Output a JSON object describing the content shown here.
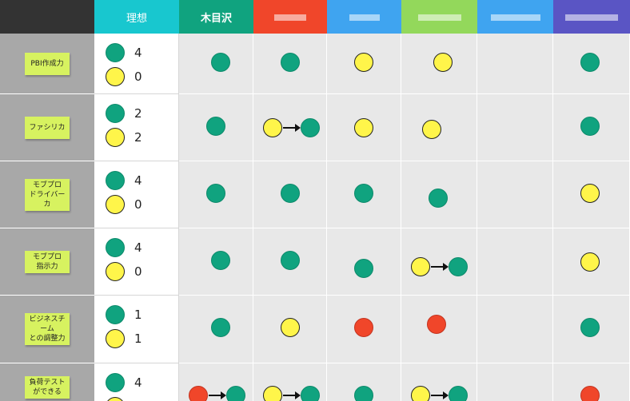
{
  "header": {
    "ideal_label": "理想",
    "member_label": "木目沢"
  },
  "colors": {
    "ideal_header": "#18c7cf",
    "member1_header": "#10a37f",
    "member2_header": "#f0462a",
    "member3_header": "#3fa4f0",
    "member4_header": "#93d85b",
    "member5_header": "#3fa4f0",
    "member6_header": "#5a55c4",
    "level_high": "#10a37f",
    "level_mid": "#fff54a",
    "level_low": "#f0462a"
  },
  "legend_meaning": {
    "green": "green-circle",
    "yellow": "yellow-circle"
  },
  "rows": [
    {
      "skill": "PBI作成力",
      "ideal_green": "4",
      "ideal_yellow": "0",
      "members": [
        [
          "green"
        ],
        [
          "green"
        ],
        [
          "yellow"
        ],
        [
          "yellow"
        ],
        [],
        [
          "green"
        ]
      ]
    },
    {
      "skill": "ファシリカ",
      "ideal_green": "2",
      "ideal_yellow": "2",
      "members": [
        [
          "green"
        ],
        [
          "yellow",
          "green"
        ],
        [
          "yellow"
        ],
        [
          "yellow"
        ],
        [],
        [
          "green"
        ]
      ]
    },
    {
      "skill": "モブプロ\nドライバーカ",
      "ideal_green": "4",
      "ideal_yellow": "0",
      "members": [
        [
          "green"
        ],
        [
          "green"
        ],
        [
          "green"
        ],
        [
          "green"
        ],
        [],
        [
          "yellow"
        ]
      ]
    },
    {
      "skill": "モブプロ\n指示力",
      "ideal_green": "4",
      "ideal_yellow": "0",
      "members": [
        [
          "green"
        ],
        [
          "green"
        ],
        [
          "green"
        ],
        [
          "yellow",
          "green"
        ],
        [],
        [
          "yellow"
        ]
      ]
    },
    {
      "skill": "ビジネスチーム\nとの調整力",
      "ideal_green": "1",
      "ideal_yellow": "1",
      "members": [
        [
          "green"
        ],
        [
          "yellow"
        ],
        [
          "red"
        ],
        [
          "red"
        ],
        [],
        [
          "green"
        ]
      ]
    },
    {
      "skill": "負荷テスト\nができる",
      "ideal_green": "4",
      "ideal_yellow": "",
      "members": [
        [
          "red",
          "green"
        ],
        [
          "yellow",
          "green"
        ],
        [
          "green"
        ],
        [
          "yellow",
          "green"
        ],
        [],
        [
          "red"
        ]
      ]
    }
  ]
}
